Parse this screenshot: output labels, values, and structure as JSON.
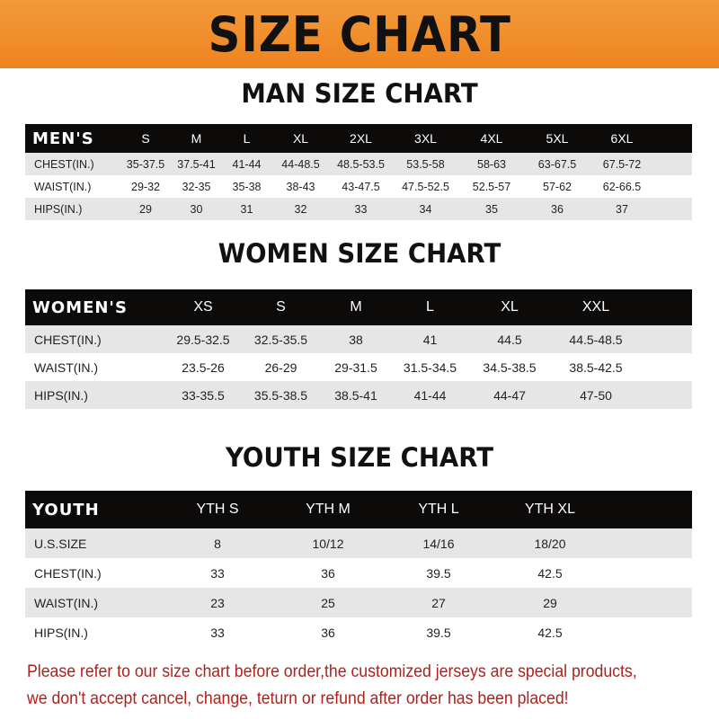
{
  "banner": {
    "title": "SIZE CHART",
    "color": "#ee8420"
  },
  "men": {
    "title": "MAN SIZE CHART",
    "header": [
      "MEN'S",
      "S",
      "M",
      "L",
      "XL",
      "2XL",
      "3XL",
      "4XL",
      "5XL",
      "6XL"
    ],
    "rows": [
      [
        "CHEST(IN.)",
        "35-37.5",
        "37.5-41",
        "41-44",
        "44-48.5",
        "48.5-53.5",
        "53.5-58",
        "58-63",
        "63-67.5",
        "67.5-72"
      ],
      [
        "WAIST(IN.)",
        "29-32",
        "32-35",
        "35-38",
        "38-43",
        "43-47.5",
        "47.5-52.5",
        "52.5-57",
        "57-62",
        "62-66.5"
      ],
      [
        "HIPS(IN.)",
        "29",
        "30",
        "31",
        "32",
        "33",
        "34",
        "35",
        "36",
        "37"
      ]
    ]
  },
  "women": {
    "title": "WOMEN SIZE CHART",
    "header": [
      "WOMEN'S",
      "XS",
      "S",
      "M",
      "L",
      "XL",
      "XXL"
    ],
    "rows": [
      [
        "CHEST(IN.)",
        "29.5-32.5",
        "32.5-35.5",
        "38",
        "41",
        "44.5",
        "44.5-48.5"
      ],
      [
        "WAIST(IN.)",
        "23.5-26",
        "26-29",
        "29-31.5",
        "31.5-34.5",
        "34.5-38.5",
        "38.5-42.5"
      ],
      [
        "HIPS(IN.)",
        "33-35.5",
        "35.5-38.5",
        "38.5-41",
        "41-44",
        "44-47",
        "47-50"
      ]
    ]
  },
  "youth": {
    "title": "YOUTH SIZE CHART",
    "header": [
      "YOUTH",
      "YTH S",
      "YTH M",
      "YTH L",
      "YTH XL"
    ],
    "rows": [
      [
        "U.S.SIZE",
        "8",
        "10/12",
        "14/16",
        "18/20"
      ],
      [
        "CHEST(IN.)",
        "33",
        "36",
        "39.5",
        "42.5"
      ],
      [
        "WAIST(IN.)",
        "23",
        "25",
        "27",
        "29"
      ],
      [
        "HIPS(IN.)",
        "33",
        "36",
        "39.5",
        "42.5"
      ]
    ]
  },
  "note": {
    "line1": "Please refer to our size chart before order,the customized jerseys are special products,",
    "line2": "we don't accept cancel, change, teturn or refund after order has been placed!",
    "color": "#b0201c"
  }
}
